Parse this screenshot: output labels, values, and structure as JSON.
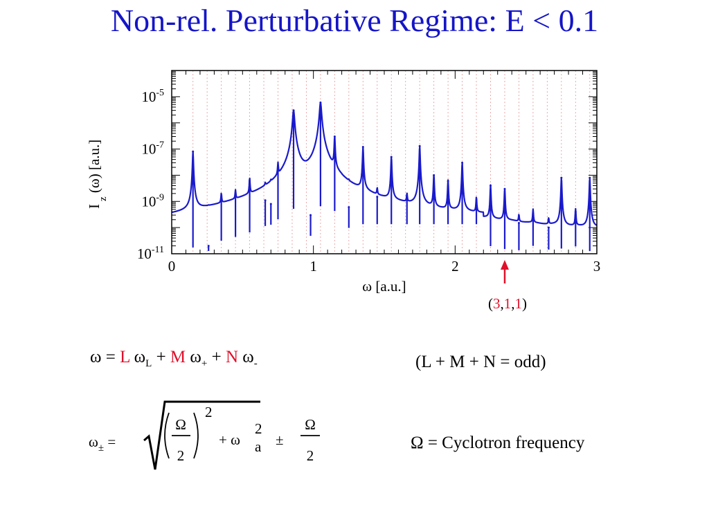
{
  "slide": {
    "title": "Non-rel. Perturbative Regime: E < 0.1"
  },
  "chart_data": {
    "type": "line",
    "log_y": true,
    "xlabel": "ω [a.u.]",
    "ylabel_main": "I",
    "ylabel_sub": "z",
    "ylabel_rest": " (ω) [a.u.]",
    "xlim": [
      0,
      3
    ],
    "ylim": [
      1e-11,
      0.0001
    ],
    "x_ticks": [
      "0",
      "1",
      "2",
      "3"
    ],
    "y_ticks": [
      {
        "base": "10",
        "exp": "-5"
      },
      {
        "base": "10",
        "exp": "-7"
      },
      {
        "base": "10",
        "exp": "-9"
      },
      {
        "base": "10",
        "exp": "-11"
      }
    ],
    "series_color": "#1a1acc",
    "guide_color": "#e8a0a0",
    "guide_lines_x": [
      0.15,
      0.25,
      0.35,
      0.45,
      0.55,
      0.65,
      0.75,
      0.85,
      0.95,
      1.05,
      1.15,
      1.25,
      1.35,
      1.45,
      1.55,
      1.65,
      1.75,
      1.85,
      1.95,
      2.05,
      2.15,
      2.25,
      2.35,
      2.45,
      2.55,
      2.65,
      2.75,
      2.85,
      2.95
    ],
    "peaks": [
      {
        "x": 0.15,
        "y": 8e-08
      },
      {
        "x": 0.26,
        "y": 2e-11
      },
      {
        "x": 0.35,
        "y": 1.2e-09
      },
      {
        "x": 0.45,
        "y": 1.5e-09
      },
      {
        "x": 0.55,
        "y": 6e-09
      },
      {
        "x": 0.66,
        "y": 1.1e-09
      },
      {
        "x": 0.7,
        "y": 8e-10
      },
      {
        "x": 0.75,
        "y": 2e-08
      },
      {
        "x": 0.86,
        "y": 3e-06
      },
      {
        "x": 0.98,
        "y": 3e-10
      },
      {
        "x": 1.05,
        "y": 6e-06
      },
      {
        "x": 1.15,
        "y": 3e-07
      },
      {
        "x": 1.25,
        "y": 6e-10
      },
      {
        "x": 1.35,
        "y": 1.2e-07
      },
      {
        "x": 1.45,
        "y": 1.5e-09
      },
      {
        "x": 1.55,
        "y": 5e-08
      },
      {
        "x": 1.66,
        "y": 1.1e-09
      },
      {
        "x": 1.75,
        "y": 1.3e-07
      },
      {
        "x": 1.85,
        "y": 1e-08
      },
      {
        "x": 1.95,
        "y": 6e-09
      },
      {
        "x": 2.05,
        "y": 3e-08
      },
      {
        "x": 2.15,
        "y": 1.1e-09
      },
      {
        "x": 2.25,
        "y": 4e-09
      },
      {
        "x": 2.35,
        "y": 3e-09
      },
      {
        "x": 2.45,
        "y": 1.5e-10
      },
      {
        "x": 2.55,
        "y": 3.5e-10
      },
      {
        "x": 2.66,
        "y": 1e-10
      },
      {
        "x": 2.75,
        "y": 8e-09
      },
      {
        "x": 2.85,
        "y": 4e-10
      },
      {
        "x": 2.95,
        "y": 8e-09
      }
    ],
    "annotation": {
      "x": 2.35,
      "open": "(",
      "n1": "3",
      "sep1": ",",
      "n2": "1",
      "sep2": ",",
      "n3": "1",
      "close": ")"
    }
  },
  "equations": {
    "omega_sum": {
      "omega": "ω",
      "eq": " = ",
      "L": "L",
      "omegaL": " ω",
      "subL": "L",
      "plus1": " + ",
      "M": "M",
      "omegaP": " ω",
      "subP": "+",
      "plus2": " + ",
      "N": "N",
      "omegaM": " ω",
      "subM": "-"
    },
    "condition": "(L + M + N = odd)",
    "omega_pm": {
      "lhs": "ω",
      "lhs_sub": "±",
      "eq": " = ",
      "Omega": "Ω",
      "two": "2",
      "sq": "2",
      "plus": "+ ω",
      "a_sub": "a",
      "a_sup": "2",
      "pm": "±",
      "Omega2": "Ω",
      "two2": "2"
    },
    "cyclotron": "Ω = Cyclotron frequency"
  }
}
